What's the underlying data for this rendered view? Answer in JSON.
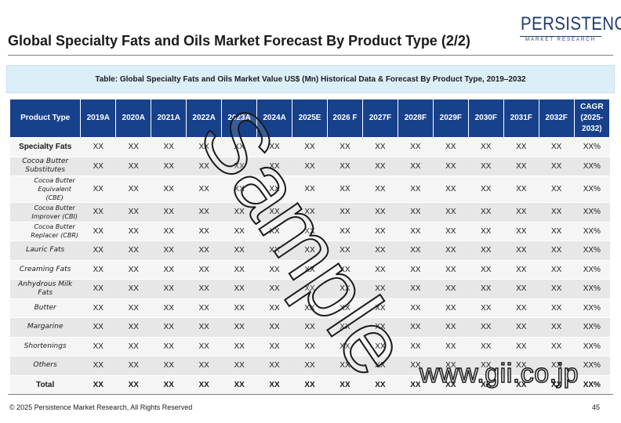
{
  "header": {
    "title": "Global Specialty Fats and Oils Market Forecast By Product Type (2/2)",
    "logo_main": "PERSISTENCE",
    "logo_sub": "MARKET RESEARCH"
  },
  "caption": "Table: Global Specialty Fats and Oils Market Value US$ (Mn) Historical Data & Forecast By Product Type, 2019–2032",
  "table": {
    "headers": [
      "Product Type",
      "2019A",
      "2020A",
      "2021A",
      "2022A",
      "2023A",
      "2024A",
      "2025E",
      "2026 F",
      "2027F",
      "2028F",
      "2029F",
      "2030F",
      "2031F",
      "2032F",
      "CAGR (2025-2032)"
    ],
    "rows": [
      {
        "label": "Specialty Fats",
        "level": "0",
        "values": [
          "XX",
          "XX",
          "XX",
          "XX",
          "XX",
          "XX",
          "XX",
          "XX",
          "XX",
          "XX",
          "XX",
          "XX",
          "XX",
          "XX",
          "XX%"
        ]
      },
      {
        "label": "Cocoa Butter Substitutes",
        "level": "1",
        "values": [
          "XX",
          "XX",
          "XX",
          "XX",
          "XX",
          "XX",
          "XX",
          "XX",
          "XX",
          "XX",
          "XX",
          "XX",
          "XX",
          "XX",
          "XX%"
        ]
      },
      {
        "label": "Cocoa Butter Equivalent (CBE)",
        "level": "2",
        "values": [
          "XX",
          "XX",
          "XX",
          "XX",
          "XX",
          "XX",
          "XX",
          "XX",
          "XX",
          "XX",
          "XX",
          "XX",
          "XX",
          "XX",
          "XX%"
        ]
      },
      {
        "label": "Cocoa Butter Improver (CBI)",
        "level": "2",
        "values": [
          "XX",
          "XX",
          "XX",
          "XX",
          "XX",
          "XX",
          "XX",
          "XX",
          "XX",
          "XX",
          "XX",
          "XX",
          "XX",
          "XX",
          "XX%"
        ]
      },
      {
        "label": "Cocoa Butter Replacer (CBR)",
        "level": "2",
        "values": [
          "XX",
          "XX",
          "XX",
          "XX",
          "XX",
          "XX",
          "XX",
          "XX",
          "XX",
          "XX",
          "XX",
          "XX",
          "XX",
          "XX",
          "XX%"
        ]
      },
      {
        "label": "Lauric Fats",
        "level": "1",
        "values": [
          "XX",
          "XX",
          "XX",
          "XX",
          "XX",
          "XX",
          "XX",
          "XX",
          "XX",
          "XX",
          "XX",
          "XX",
          "XX",
          "XX",
          "XX%"
        ]
      },
      {
        "label": "Creaming Fats",
        "level": "1",
        "values": [
          "XX",
          "XX",
          "XX",
          "XX",
          "XX",
          "XX",
          "XX",
          "XX",
          "XX",
          "XX",
          "XX",
          "XX",
          "XX",
          "XX",
          "XX%"
        ]
      },
      {
        "label": "Anhydrous Milk Fats",
        "level": "1",
        "values": [
          "XX",
          "XX",
          "XX",
          "XX",
          "XX",
          "XX",
          "XX",
          "XX",
          "XX",
          "XX",
          "XX",
          "XX",
          "XX",
          "XX",
          "XX%"
        ]
      },
      {
        "label": "Butter",
        "level": "1",
        "values": [
          "XX",
          "XX",
          "XX",
          "XX",
          "XX",
          "XX",
          "XX",
          "XX",
          "XX",
          "XX",
          "XX",
          "XX",
          "XX",
          "XX",
          "XX%"
        ]
      },
      {
        "label": "Margarine",
        "level": "1",
        "values": [
          "XX",
          "XX",
          "XX",
          "XX",
          "XX",
          "XX",
          "XX",
          "XX",
          "XX",
          "XX",
          "XX",
          "XX",
          "XX",
          "XX",
          "XX%"
        ]
      },
      {
        "label": "Shortenings",
        "level": "1",
        "values": [
          "XX",
          "XX",
          "XX",
          "XX",
          "XX",
          "XX",
          "XX",
          "XX",
          "XX",
          "XX",
          "XX",
          "XX",
          "XX",
          "XX",
          "XX%"
        ]
      },
      {
        "label": "Others",
        "level": "1",
        "values": [
          "XX",
          "XX",
          "XX",
          "XX",
          "XX",
          "XX",
          "XX",
          "XX",
          "XX",
          "XX",
          "XX",
          "XX",
          "XX",
          "XX",
          "XX%"
        ]
      },
      {
        "label": "Total",
        "level": "total",
        "values": [
          "XX",
          "XX",
          "XX",
          "XX",
          "XX",
          "XX",
          "XX",
          "XX",
          "XX",
          "XX",
          "XX",
          "XX",
          "XX",
          "XX",
          "XX%"
        ]
      }
    ]
  },
  "watermarks": {
    "sample": "Sample",
    "site": "www.gii.co.jp"
  },
  "footer": {
    "copyright": "© 2025 Persistence Market Research, All Rights Reserved",
    "page_number": "45"
  },
  "colors": {
    "header_fill": "#17418a",
    "caption_fill": "#dceef8",
    "row_light": "#f5f5f5",
    "row_dark": "#e7e7e7",
    "logo": "#1f3b6f"
  }
}
